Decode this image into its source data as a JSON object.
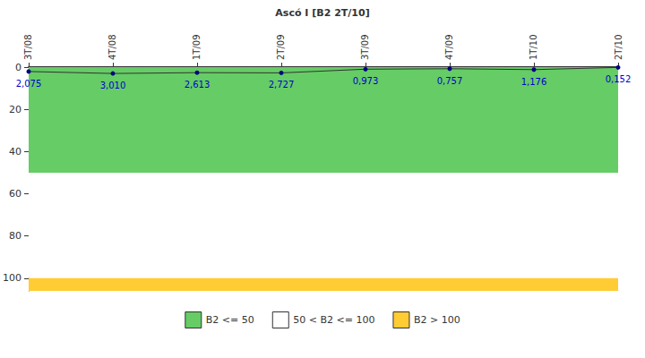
{
  "chart_data": {
    "type": "line",
    "title": "Ascó I [B2 2T/10]",
    "categories": [
      "3T/08",
      "4T/08",
      "1T/09",
      "2T/09",
      "3T/09",
      "4T/09",
      "1T/10",
      "2T/10"
    ],
    "values": [
      2.075,
      3.01,
      2.613,
      2.727,
      0.973,
      0.757,
      1.176,
      0.152
    ],
    "value_labels": [
      "2,075",
      "3,010",
      "2,613",
      "2,727",
      "0,973",
      "0,757",
      "1,176",
      "0,152"
    ],
    "data_labels": true,
    "color": "#333333",
    "marker": "circle",
    "ylim": [
      0,
      106
    ],
    "yticks": [
      0,
      20,
      40,
      60,
      80,
      100
    ],
    "grid": false,
    "legend": "bottom",
    "bands": [
      {
        "name": "B2 <= 50",
        "color": "#66cc66",
        "from": 0,
        "to": 50
      },
      {
        "name": "50 < B2 <= 100",
        "color": "#ffffff",
        "from": 50,
        "to": 100
      },
      {
        "name": "B2 > 100",
        "color": "#ffcc33",
        "from": 100,
        "to": 106
      }
    ]
  }
}
